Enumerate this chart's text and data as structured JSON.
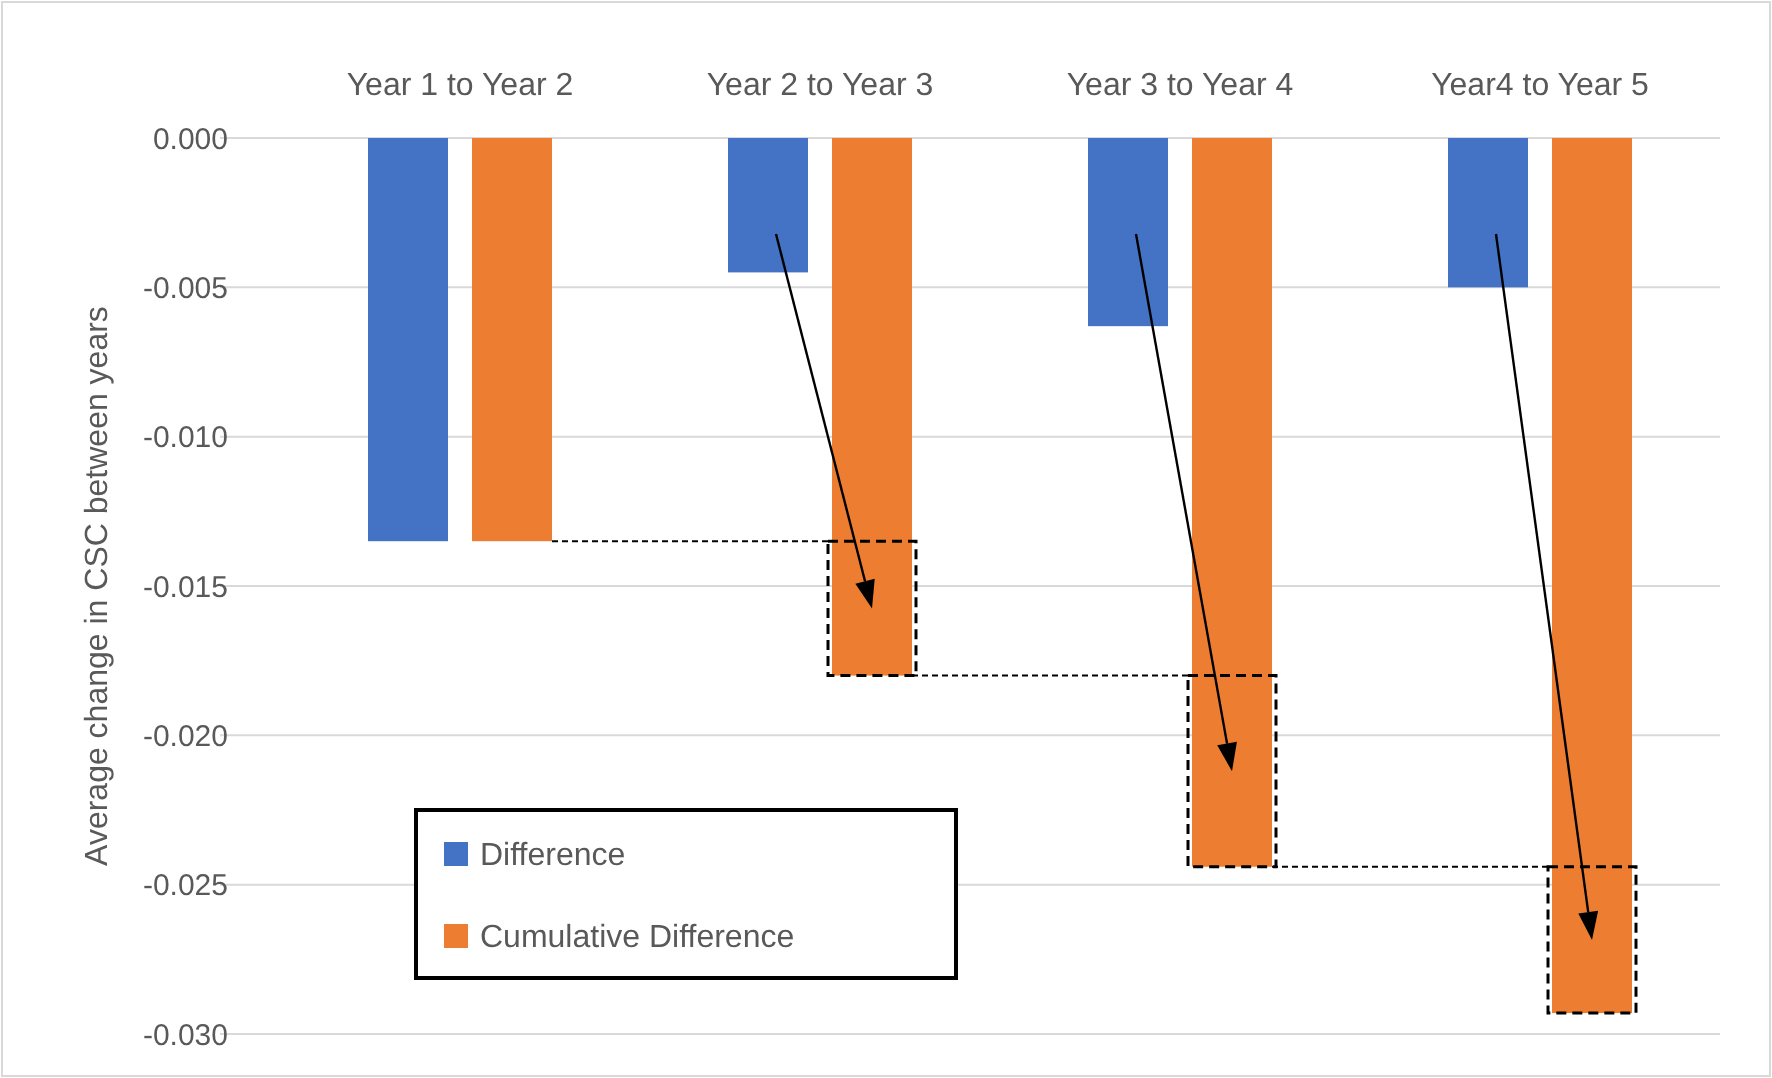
{
  "chart_data": {
    "type": "bar",
    "ylabel": "Average change in CSC between years",
    "categories": [
      "Year 1 to Year 2",
      "Year 2 to Year 3",
      "Year 3 to Year 4",
      "Year4 to Year 5"
    ],
    "series": [
      {
        "name": "Difference",
        "color": "#4472c4",
        "values": [
          -0.0135,
          -0.0045,
          -0.0063,
          -0.005
        ]
      },
      {
        "name": "Cumulative Difference",
        "color": "#ed7d31",
        "values": [
          -0.0135,
          -0.018,
          -0.0244,
          -0.0293
        ]
      }
    ],
    "ylim": [
      -0.03,
      0
    ],
    "yticks": [
      {
        "value": 0,
        "label": "0.000"
      },
      {
        "value": -0.005,
        "label": "-0.005"
      },
      {
        "value": -0.01,
        "label": "-0.010"
      },
      {
        "value": -0.015,
        "label": "-0.015"
      },
      {
        "value": -0.02,
        "label": "-0.020"
      },
      {
        "value": -0.025,
        "label": "-0.025"
      },
      {
        "value": -0.03,
        "label": "-0.030"
      }
    ],
    "grid": "y",
    "legend": "bottom left"
  }
}
